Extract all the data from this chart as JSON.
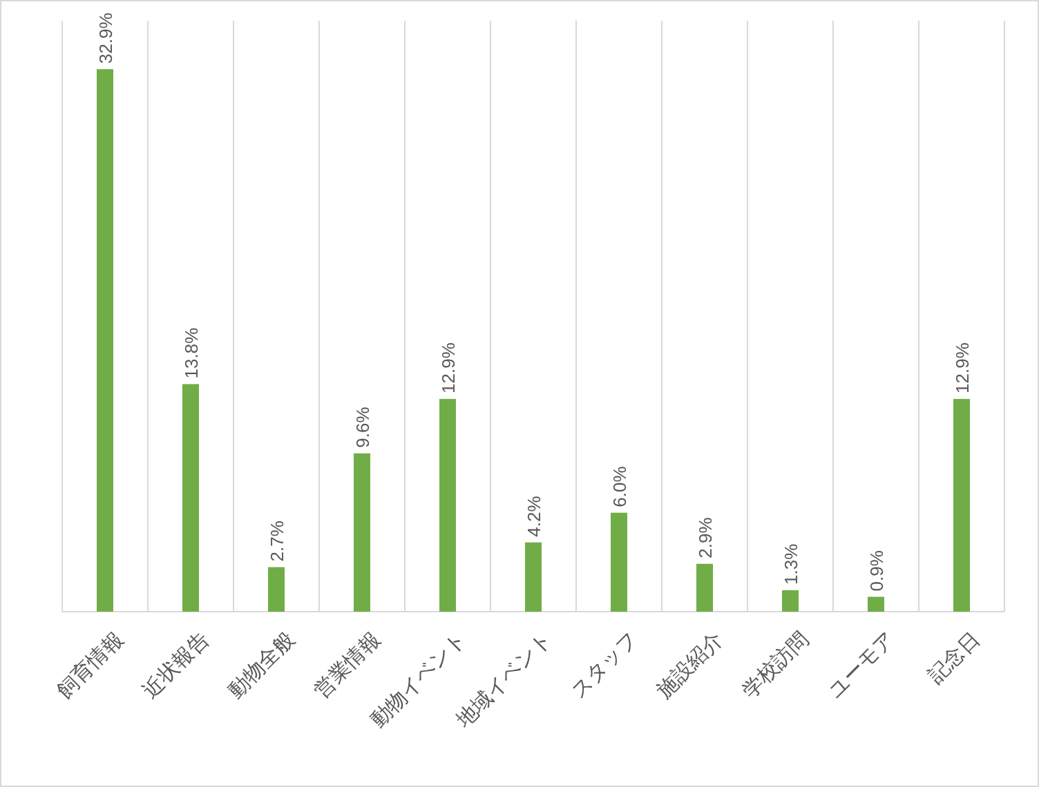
{
  "chart_data": {
    "type": "bar",
    "categories": [
      "飼育情報",
      "近状報告",
      "動物全般",
      "営業情報",
      "動物イベント",
      "地域イベント",
      "スタッフ",
      "施設紹介",
      "学校訪問",
      "ユーモア",
      "記念日"
    ],
    "values": [
      32.9,
      13.8,
      2.7,
      9.6,
      12.9,
      4.2,
      6.0,
      2.9,
      1.3,
      0.9,
      12.9
    ],
    "value_labels": [
      "32.9%",
      "13.8%",
      "2.7%",
      "9.6%",
      "12.9%",
      "4.2%",
      "6.0%",
      "2.9%",
      "1.3%",
      "0.9%",
      "12.9%"
    ],
    "color": "#70ad47",
    "grid": "x"
  }
}
